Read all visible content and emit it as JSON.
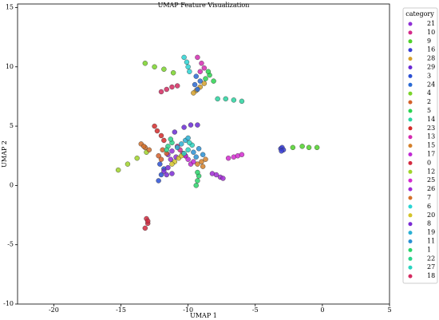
{
  "chart_data": {
    "type": "scatter",
    "title": "UMAP Feature Visualization",
    "x_label": "UMAP 1",
    "y_label": "UMAP 2",
    "legend_title": "category",
    "legend_position": "right",
    "xlim": [
      -22.7,
      5
    ],
    "ylim": [
      -10,
      15.3
    ],
    "xticks": [
      -20,
      -15,
      -10,
      -5,
      0,
      5
    ],
    "yticks": [
      -10,
      -5,
      0,
      5,
      10,
      15
    ],
    "grid": false,
    "series": [
      {
        "name": "21",
        "color": "#8f2fd6",
        "x": [
          -11.5,
          -11.2,
          -10.9,
          -11.3
        ],
        "values": [
          2.6,
          2.9,
          2.4,
          2.2
        ]
      },
      {
        "name": "10",
        "color": "#d42a8a",
        "x": [
          -10.6,
          -10.4,
          -10.8,
          -10.2
        ],
        "values": [
          3.0,
          2.7,
          3.3,
          2.5
        ]
      },
      {
        "name": "9",
        "color": "#4fd22a",
        "x": [
          -2.2,
          -1.5,
          -1,
          -0.4
        ],
        "values": [
          3.2,
          3.3,
          3.2,
          3.2
        ]
      },
      {
        "name": "16",
        "color": "#3a3fd4",
        "x": [
          -3.1,
          -3,
          -2.9,
          -3.05
        ],
        "values": [
          3.1,
          3.2,
          3.0,
          2.9
        ]
      },
      {
        "name": "28",
        "color": "#d4a02a",
        "x": [
          -9.4,
          -9.1,
          -8.8,
          -9.6
        ],
        "values": [
          8.0,
          8.3,
          8.6,
          7.8
        ]
      },
      {
        "name": "29",
        "color": "#6a2ad4",
        "x": [
          -11,
          -10.3,
          -9.8,
          -9.3
        ],
        "values": [
          4.5,
          4.9,
          5.1,
          5.1
        ]
      },
      {
        "name": "3",
        "color": "#2a4fd4",
        "x": [
          -12.2,
          -12,
          -11.8,
          -12.1
        ],
        "values": [
          0.4,
          0.9,
          1.4,
          1.8
        ]
      },
      {
        "name": "24",
        "color": "#2a6ad4",
        "x": [
          -9.5,
          -9.3,
          -9.1,
          -9.4
        ],
        "values": [
          8.5,
          8.1,
          8.8,
          9.2
        ]
      },
      {
        "name": "4",
        "color": "#7ad42a",
        "x": [
          -13.2,
          -12.5,
          -11.8,
          -11.1
        ],
        "values": [
          10.3,
          10,
          9.8,
          9.5
        ]
      },
      {
        "name": "2",
        "color": "#d4602a",
        "x": [
          -12.2,
          -12,
          -11.6,
          -11.9
        ],
        "values": [
          2.5,
          2.2,
          2.7,
          3.0
        ]
      },
      {
        "name": "5",
        "color": "#2ad44f",
        "x": [
          -8.7,
          -8.4,
          -8.1,
          -8.5
        ],
        "values": [
          9.0,
          9.3,
          8.8,
          9.6
        ]
      },
      {
        "name": "14",
        "color": "#2ad4a0",
        "x": [
          -7.8,
          -7.2,
          -6.6,
          -6
        ],
        "values": [
          7.3,
          7.3,
          7.2,
          7.1
        ]
      },
      {
        "name": "23",
        "color": "#d42a2a",
        "x": [
          -12.5,
          -12.3,
          -12,
          -11.8
        ],
        "values": [
          5,
          4.6,
          4.2,
          3.8
        ]
      },
      {
        "name": "13",
        "color": "#d42ab0",
        "x": [
          -9.3,
          -9,
          -8.8,
          -9.1
        ],
        "values": [
          10.8,
          10.3,
          9.9,
          9.6
        ]
      },
      {
        "name": "15",
        "color": "#d4802a",
        "x": [
          -9.3,
          -9,
          -8.7,
          -8.9
        ],
        "values": [
          1.8,
          2.0,
          2.2,
          1.6
        ]
      },
      {
        "name": "17",
        "color": "#c02ad4",
        "x": [
          -10,
          -9.8,
          -10.2,
          -9.6
        ],
        "values": [
          2.2,
          1.8,
          2.5,
          2.0
        ]
      },
      {
        "name": "0",
        "color": "#d42a40",
        "x": [
          -13.1,
          -13,
          -13.2,
          -13
        ],
        "values": [
          -2.8,
          -3.2,
          -3.6,
          -3.0
        ]
      },
      {
        "name": "12",
        "color": "#a0d42a",
        "x": [
          -15.2,
          -14.5,
          -13.8,
          -13.1
        ],
        "values": [
          1.3,
          1.8,
          2.3,
          2.8
        ]
      },
      {
        "name": "25",
        "color": "#d42ad0",
        "x": [
          -7,
          -6.6,
          -6.3,
          -6
        ],
        "values": [
          2.3,
          2.4,
          2.5,
          2.6
        ]
      },
      {
        "name": "26",
        "color": "#a02ad4",
        "x": [
          -8.2,
          -7.9,
          -7.6,
          -7.4
        ],
        "values": [
          1.0,
          0.9,
          0.7,
          0.6
        ]
      },
      {
        "name": "7",
        "color": "#d4702a",
        "x": [
          -13.5,
          -13.2,
          -12.9,
          -13.3
        ],
        "values": [
          3.5,
          3.2,
          3.0,
          3.3
        ]
      },
      {
        "name": "6",
        "color": "#2ad4d4",
        "x": [
          -10.3,
          -10.1,
          -10,
          -9.9
        ],
        "values": [
          10.8,
          10.4,
          10,
          9.6
        ]
      },
      {
        "name": "20",
        "color": "#d4c42a",
        "x": [
          -11,
          -10.7,
          -11.2,
          -10.5
        ],
        "values": [
          2.0,
          2.3,
          1.8,
          2.5
        ]
      },
      {
        "name": "8",
        "color": "#7a2ad4",
        "x": [
          -11.8,
          -11.5,
          -11.6,
          -11.2
        ],
        "values": [
          1.2,
          1.5,
          0.9,
          1.0
        ]
      },
      {
        "name": "19",
        "color": "#2ab0d4",
        "x": [
          -10.5,
          -10.2,
          -10.8,
          -10
        ],
        "values": [
          3.5,
          3.8,
          3.2,
          4.0
        ]
      },
      {
        "name": "11",
        "color": "#2a90d4",
        "x": [
          -9.6,
          -9.2,
          -8.9,
          -9.4
        ],
        "values": [
          2.8,
          3.1,
          2.6,
          2.4
        ]
      },
      {
        "name": "1",
        "color": "#2ad46a",
        "x": [
          -9.4,
          -9.3,
          -9.2,
          -9.3
        ],
        "values": [
          0,
          0.4,
          0.8,
          1.1
        ]
      },
      {
        "name": "22",
        "color": "#2ad48a",
        "x": [
          -11.5,
          -11.2,
          -11.6,
          -11.3
        ],
        "values": [
          3.3,
          3.6,
          3.0,
          3.9
        ]
      },
      {
        "name": "27",
        "color": "#2ad4c0",
        "x": [
          -10,
          -9.7,
          -10.3,
          -9.9
        ],
        "values": [
          3.0,
          3.4,
          2.7,
          3.6
        ]
      },
      {
        "name": "18",
        "color": "#d42a60",
        "x": [
          -12,
          -11.6,
          -11.2,
          -10.8
        ],
        "values": [
          7.9,
          8.1,
          8.3,
          8.4
        ]
      }
    ]
  }
}
